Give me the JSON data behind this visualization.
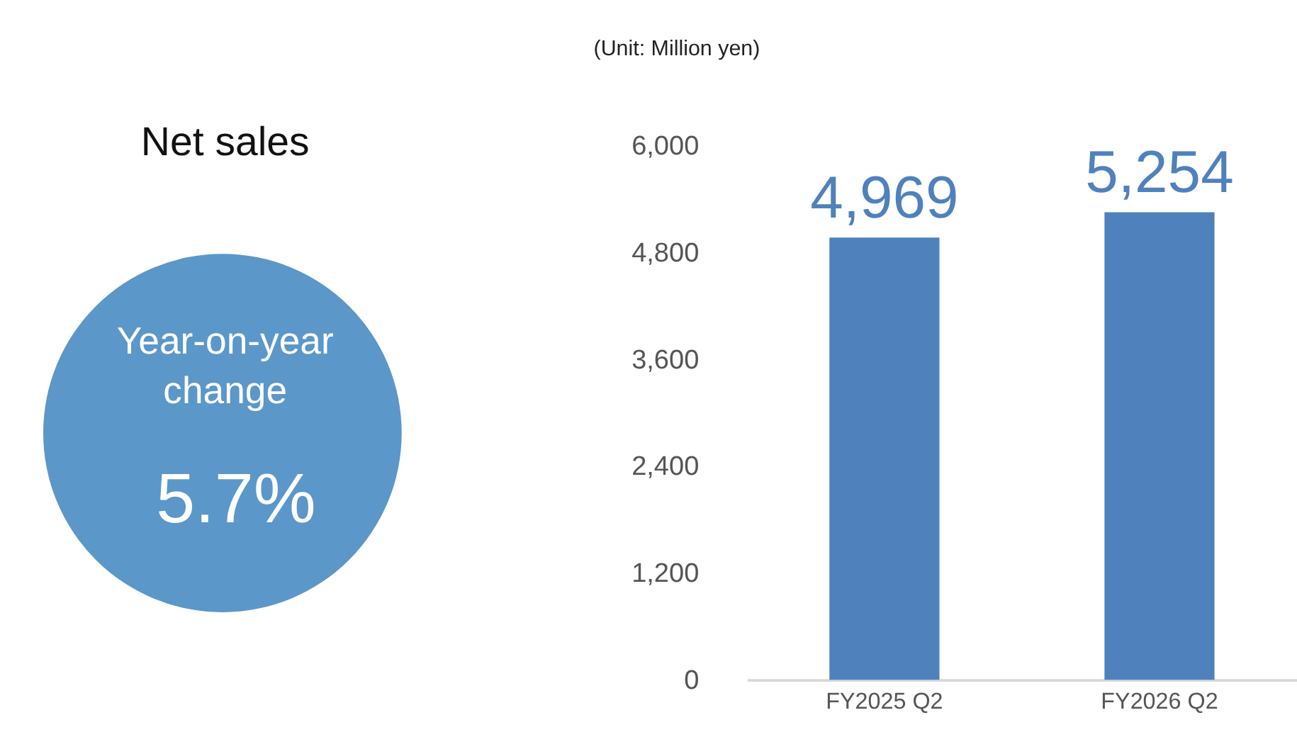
{
  "chart_data": [
    {
      "type": "other",
      "title": "Net sales",
      "annotations": [
        "Year-on-year",
        "change",
        "5.7%"
      ],
      "color": "#5b97c9"
    },
    {
      "type": "bar",
      "annotations": [
        "(Unit: Million yen)"
      ],
      "categories": [
        "FY2025 Q2",
        "FY2026 Q2"
      ],
      "values": [
        4969,
        5254
      ],
      "value_labels": [
        "4,969",
        "5,254"
      ],
      "color": "#4f81bd",
      "ylim": [
        0,
        6000
      ],
      "yticks": [
        0,
        {
          "value": 1200,
          "label": "1,200"
        },
        {
          "value": 2400,
          "label": "2,400"
        },
        {
          "value": 3600,
          "label": "3,600"
        },
        {
          "value": 4800,
          "label": "4,800"
        },
        {
          "value": 6000,
          "label": "6,000"
        }
      ],
      "grid": false
    }
  ]
}
